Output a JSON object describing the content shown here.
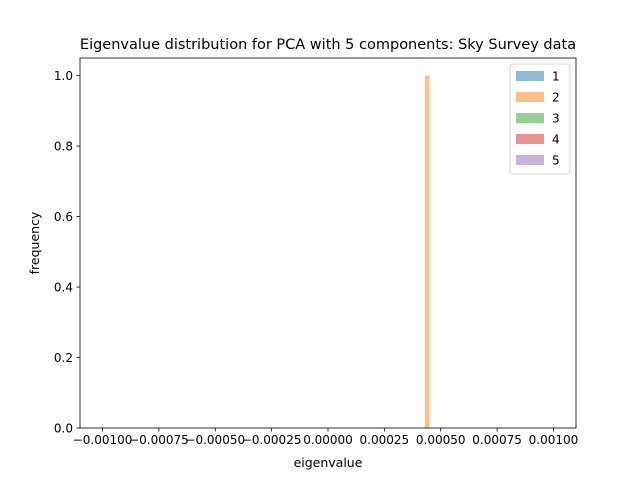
{
  "chart_data": {
    "type": "histogram",
    "title": "Eigenvalue distribution for PCA with 5 components: Sky Survey data",
    "xlabel": "eigenvalue",
    "ylabel": "frequency",
    "xlim": [
      -0.0011,
      0.0011
    ],
    "ylim": [
      0,
      1.05
    ],
    "xticks": [
      -0.001,
      -0.00075,
      -0.0005,
      -0.00025,
      0.0,
      0.00025,
      0.0005,
      0.00075,
      0.001
    ],
    "xtick_labels": [
      "−0.00100",
      "−0.00075",
      "−0.00050",
      "−0.00025",
      "0.00000",
      "0.00025",
      "0.00050",
      "0.00075",
      "0.00100"
    ],
    "yticks": [
      0.0,
      0.2,
      0.4,
      0.6,
      0.8,
      1.0
    ],
    "ytick_labels": [
      "0.0",
      "0.2",
      "0.4",
      "0.6",
      "0.8",
      "1.0"
    ],
    "legend_position": "top-right",
    "grid": false,
    "series": [
      {
        "name": "1",
        "color": "#1f77b4",
        "bins": []
      },
      {
        "name": "2",
        "color": "#ff7f0e",
        "bins": [
          {
            "x0": 0.00043,
            "x1": 0.00045,
            "value": 1.0
          }
        ]
      },
      {
        "name": "3",
        "color": "#2ca02c",
        "bins": []
      },
      {
        "name": "4",
        "color": "#d62728",
        "bins": []
      },
      {
        "name": "5",
        "color": "#9467bd",
        "bins": []
      }
    ]
  }
}
